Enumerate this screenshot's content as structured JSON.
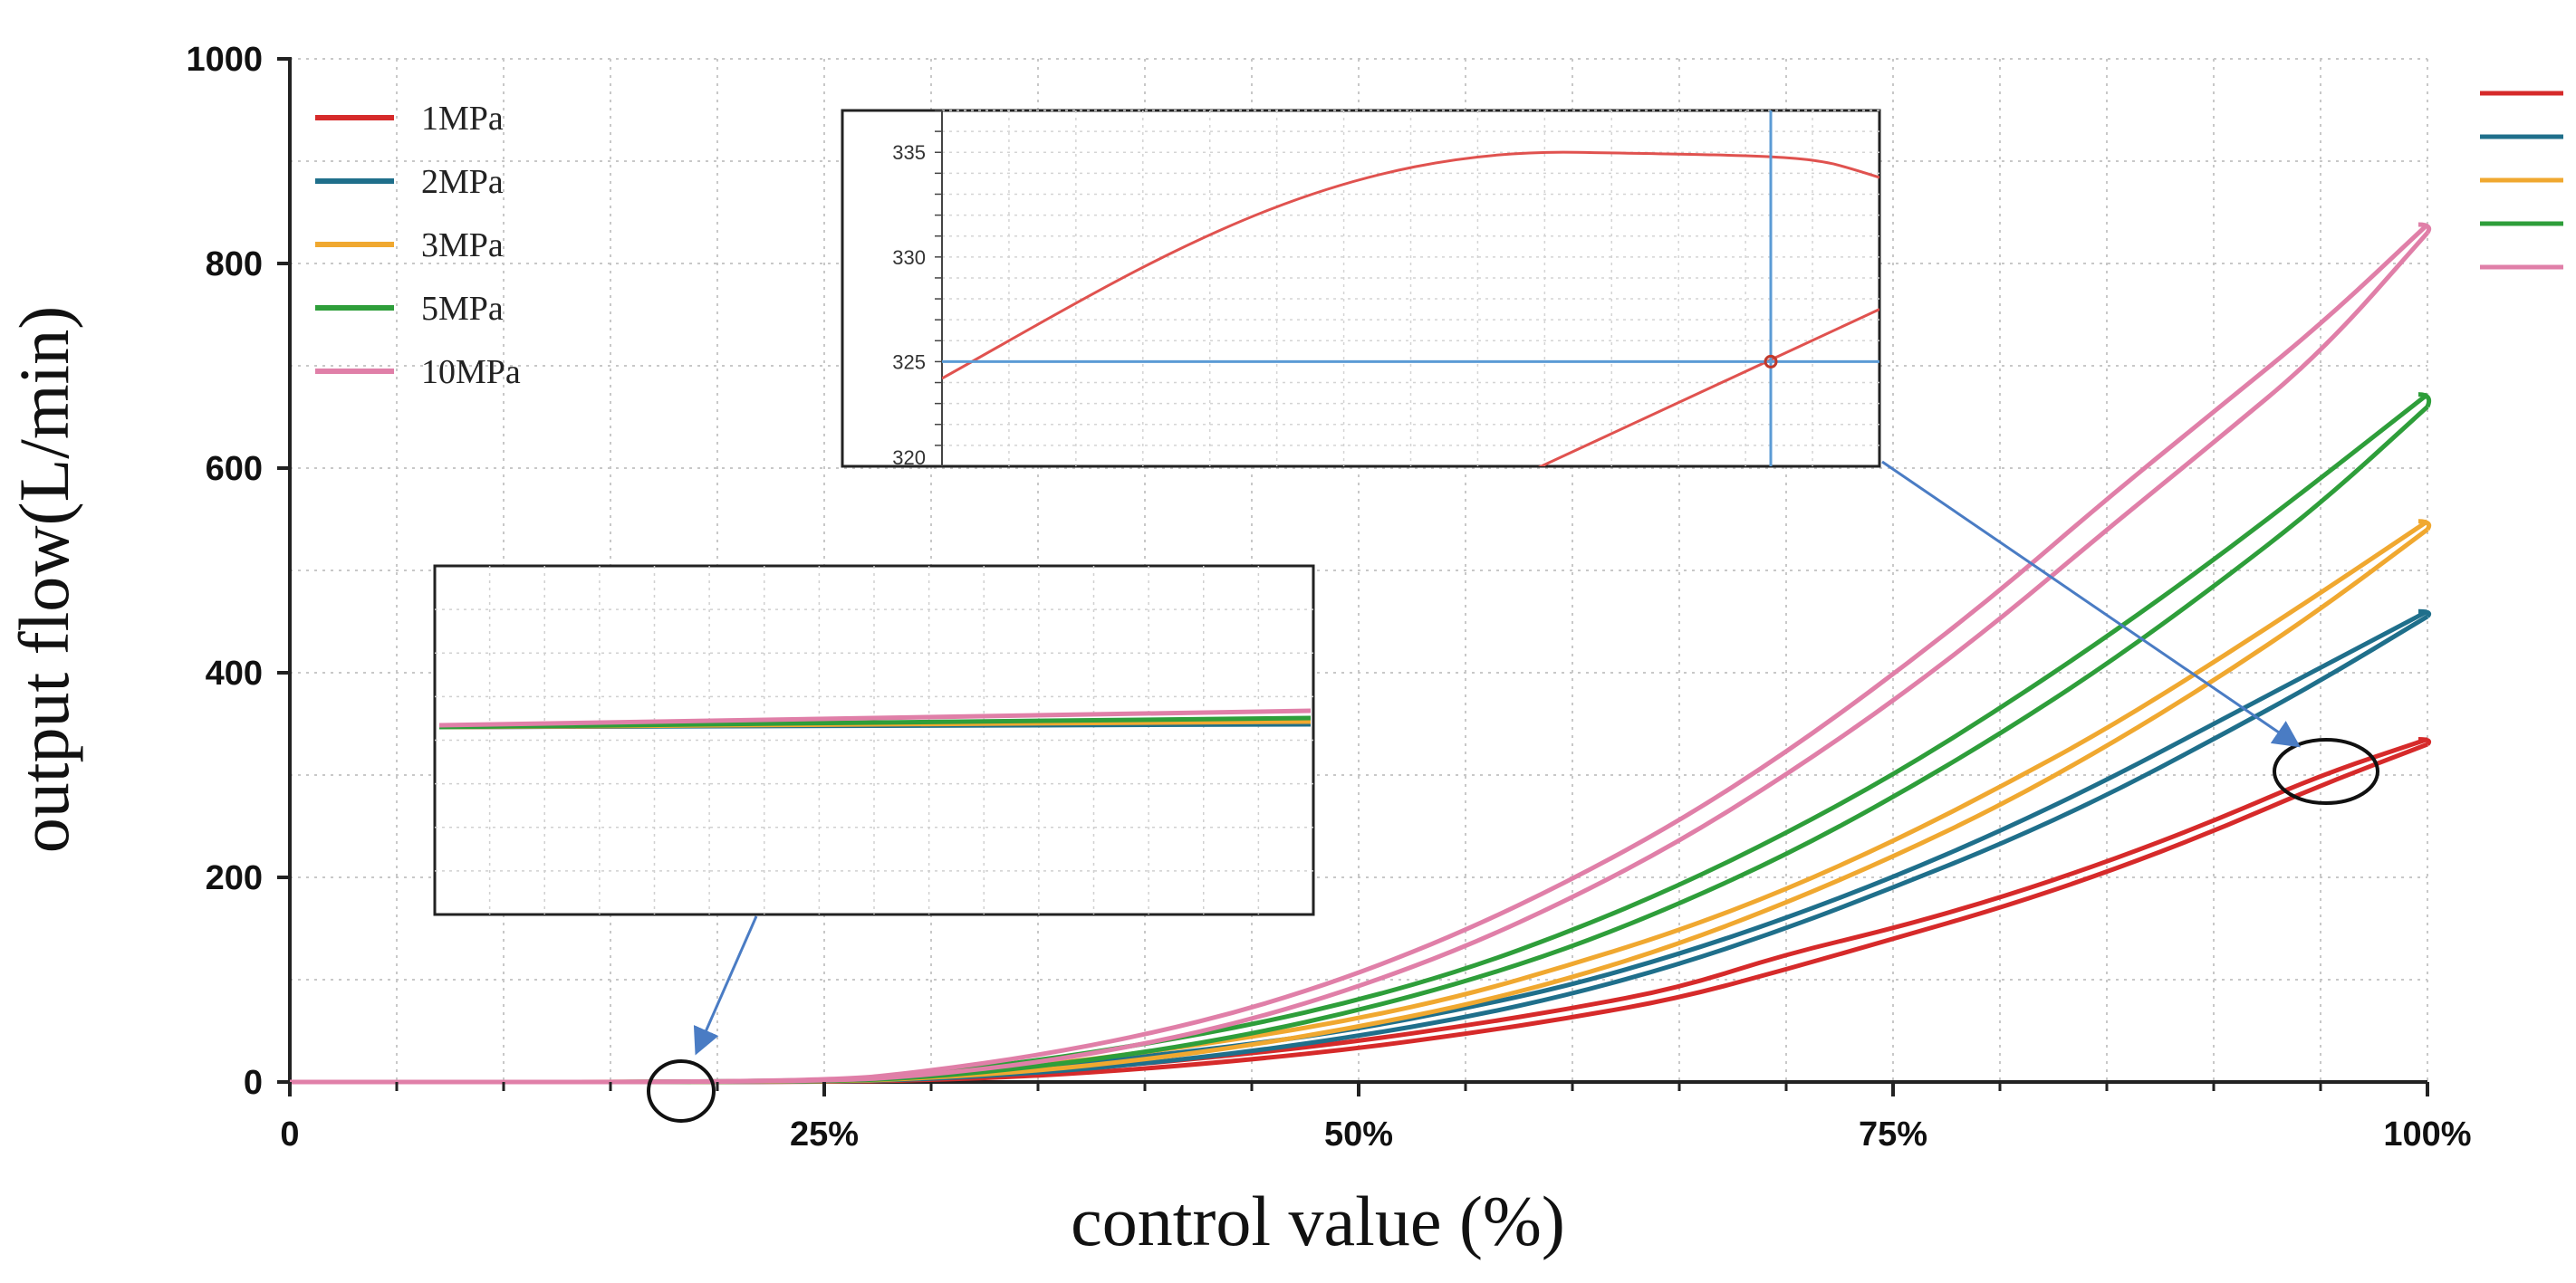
{
  "chart_data": {
    "type": "line",
    "xlabel": "control value (%)",
    "ylabel": "output flow(L/min)",
    "xlim": [
      0,
      100
    ],
    "ylim": [
      0,
      1000
    ],
    "x_ticks": [
      {
        "value": 0,
        "label": "0"
      },
      {
        "value": 25,
        "label": "25%"
      },
      {
        "value": 50,
        "label": "50%"
      },
      {
        "value": 75,
        "label": "75%"
      },
      {
        "value": 100,
        "label": "100%"
      }
    ],
    "y_ticks": [
      {
        "value": 0,
        "label": "0"
      },
      {
        "value": 200,
        "label": "200"
      },
      {
        "value": 400,
        "label": "400"
      },
      {
        "value": 600,
        "label": "600"
      },
      {
        "value": 800,
        "label": "800"
      },
      {
        "value": 1000,
        "label": "1000"
      }
    ],
    "grid": true,
    "legend_position": "top-left",
    "x": [
      0,
      25,
      30,
      35,
      40,
      45,
      50,
      55,
      60,
      65,
      70,
      75,
      80,
      85,
      90,
      95,
      100
    ],
    "series": [
      {
        "name": "1MPa",
        "color": "#d62a2a",
        "rising": [
          0,
          0,
          5,
          10,
          18,
          28,
          40,
          55,
          72,
          92,
          125,
          150,
          180,
          215,
          255,
          300,
          335
        ],
        "falling": [
          0,
          0,
          2,
          6,
          13,
          22,
          33,
          47,
          63,
          82,
          110,
          140,
          170,
          205,
          245,
          290,
          330
        ]
      },
      {
        "name": "2MPa",
        "color": "#1f6f8b",
        "rising": [
          0,
          0,
          6,
          14,
          25,
          37,
          52,
          72,
          95,
          125,
          160,
          200,
          245,
          295,
          350,
          405,
          460
        ],
        "falling": [
          0,
          0,
          3,
          9,
          18,
          30,
          45,
          63,
          86,
          115,
          150,
          190,
          232,
          280,
          335,
          392,
          455
        ]
      },
      {
        "name": "3MPa",
        "color": "#f0a830",
        "rising": [
          0,
          0,
          7,
          16,
          29,
          44,
          62,
          85,
          115,
          148,
          188,
          235,
          288,
          345,
          410,
          478,
          548
        ],
        "falling": [
          0,
          0,
          4,
          11,
          22,
          36,
          54,
          75,
          102,
          135,
          175,
          220,
          270,
          328,
          392,
          462,
          540
        ]
      },
      {
        "name": "5MPa",
        "color": "#2e9e3a",
        "rising": [
          0,
          0,
          9,
          21,
          37,
          56,
          80,
          110,
          148,
          192,
          243,
          300,
          365,
          435,
          510,
          590,
          672
        ],
        "falling": [
          0,
          0,
          5,
          15,
          29,
          47,
          70,
          98,
          132,
          174,
          222,
          278,
          340,
          408,
          484,
          565,
          660
        ]
      },
      {
        "name": "10MPa",
        "color": "#e07fa8",
        "rising": [
          0,
          0,
          11,
          26,
          46,
          72,
          106,
          148,
          198,
          255,
          322,
          398,
          480,
          570,
          655,
          740,
          838
        ],
        "falling": [
          0,
          0,
          7,
          19,
          37,
          61,
          93,
          132,
          180,
          235,
          300,
          372,
          452,
          540,
          625,
          712,
          830
        ]
      }
    ],
    "inset_top": {
      "ylim": [
        320,
        337
      ],
      "y_ticks": [
        {
          "value": 320,
          "label": "320"
        },
        {
          "value": 325,
          "label": "325"
        },
        {
          "value": 330,
          "label": "330"
        },
        {
          "value": 335,
          "label": "335"
        }
      ],
      "crosshair_value": 325
    },
    "inset_left": {
      "description_hidden": true
    }
  }
}
